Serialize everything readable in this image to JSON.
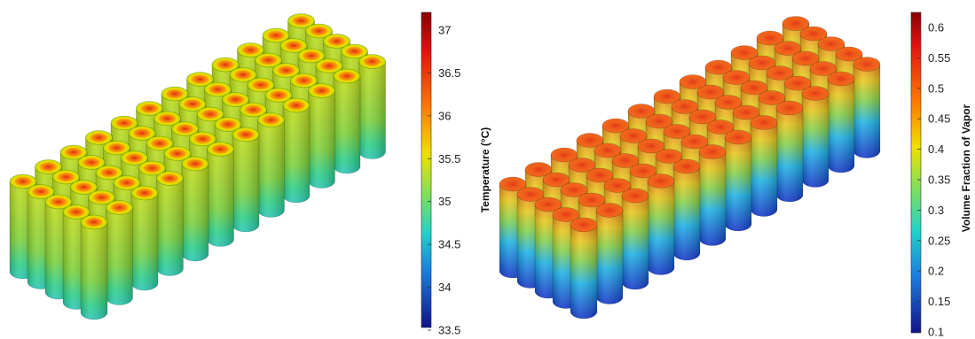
{
  "panels": [
    {
      "id": "temperature",
      "colorbar": {
        "title": "Temperature (°C)",
        "ticks": [
          "37",
          "36.5",
          "36",
          "35.5",
          "35",
          "34.5",
          "34",
          "33.5"
        ]
      },
      "colors": {
        "cap_outer": "#b7e000",
        "cap_mid": "#f4a000",
        "cap_hot": "#e62a10",
        "body_top": "#c3de18",
        "body_mid": "#7ed23a",
        "body_low": "#2fd08a",
        "body_base": "#28c7b4"
      }
    },
    {
      "id": "vapor",
      "colorbar": {
        "title": "Volume Fraction of Vapor",
        "ticks": [
          "0.6",
          "0.55",
          "0.5",
          "0.45",
          "0.4",
          "0.35",
          "0.3",
          "0.25",
          "0.2",
          "0.15",
          "0.1"
        ]
      },
      "colors": {
        "cap": "#f26a1c",
        "cap_hot": "#e33818",
        "body_top": "#ef8a1f",
        "body_mid": "#8ad24a",
        "body_low": "#1fb3e6",
        "body_base": "#1436c8"
      }
    }
  ]
}
